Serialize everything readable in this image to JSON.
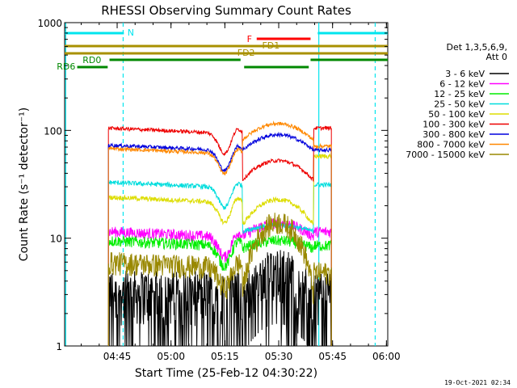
{
  "chart_data": {
    "type": "line",
    "title": "RHESSI Observing Summary Count Rates",
    "xlabel": "Start Time (25-Feb-12 04:30:22)",
    "ylabel": "Count Rate (s⁻¹ detector⁻¹)",
    "ylim": [
      1,
      1000
    ],
    "yscale": "log",
    "xlim_minutes": [
      0,
      90
    ],
    "x_ticks": [
      "04:45",
      "05:00",
      "05:15",
      "05:30",
      "05:45",
      "06:00"
    ],
    "y_ticks": [
      "1",
      "10",
      "100",
      "1000"
    ],
    "legend_header": [
      "Det 1,3,5,6,9,",
      "Att 0"
    ],
    "legend_placement": "right",
    "timestamp": "19-Oct-2021 02:34",
    "colors": {
      "night": "#00e5ee",
      "saa": "#ff0000",
      "flare": "#c0a000",
      "decimation": "#007700"
    },
    "status_bars": [
      {
        "label": "N",
        "color": "#00e5ee",
        "segments": [
          [
            0,
            16.5
          ],
          [
            70.5,
            90
          ]
        ],
        "level": 780
      },
      {
        "label": "F",
        "color": "#ff0000",
        "segments": [
          [
            53.5,
            68.5
          ]
        ],
        "level": 660
      },
      {
        "label": "FD1",
        "color": "#a89000",
        "segments": [
          [
            0,
            90
          ]
        ],
        "level": 570
      },
      {
        "label": "FD2",
        "color": "#a89000",
        "segments": [
          [
            0,
            90
          ]
        ],
        "level": 500
      },
      {
        "label": "RD0",
        "color": "#008800",
        "segments": [
          [
            12.5,
            49
          ],
          [
            68.5,
            90
          ]
        ],
        "level": 430
      },
      {
        "label": "RD6",
        "color": "#008800",
        "segments": [
          [
            3.5,
            12
          ],
          [
            50,
            68
          ]
        ],
        "level": 360
      }
    ],
    "night_boundaries": [
      {
        "t": 0.3,
        "style": "solid"
      },
      {
        "t": 16.3,
        "style": "dashed"
      },
      {
        "t": 70.8,
        "style": "solid"
      },
      {
        "t": 86.5,
        "style": "dashed"
      }
    ],
    "data_window": [
      12.2,
      74.3
    ],
    "segment_breaks": [
      49.5,
      69.3
    ],
    "series": [
      {
        "name": "3 - 6 keV",
        "color": "#000000",
        "style": "noisy-low"
      },
      {
        "name": "6 - 12 keV",
        "color": "#ff00ff",
        "baseline": 11.5
      },
      {
        "name": "12 - 25 keV",
        "color": "#00ee00",
        "baseline": 9.5
      },
      {
        "name": "25 - 50 keV",
        "color": "#00dddd",
        "baseline": 33
      },
      {
        "name": "50 - 100 keV",
        "color": "#dddd00",
        "baseline": 24
      },
      {
        "name": "100 - 300 keV",
        "color": "#ee0000",
        "baseline": 105
      },
      {
        "name": "300 - 800 keV",
        "color": "#0000dd",
        "baseline": 73
      },
      {
        "name": "800 - 7000 keV",
        "color": "#ff8800",
        "baseline": 68
      },
      {
        "name": "7000 - 15000 keV",
        "color": "#998800",
        "baseline": 6
      }
    ]
  }
}
